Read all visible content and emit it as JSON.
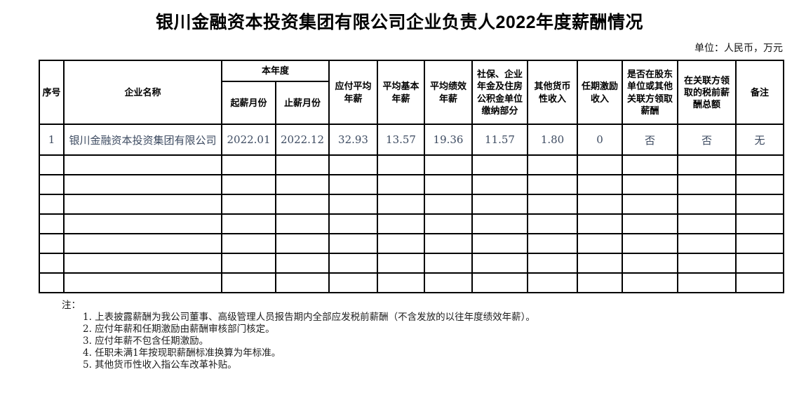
{
  "title": "银川金融资本投资集团有限公司企业负责人2022年度薪酬情况",
  "unit_label": "单位：人民币，万元",
  "table": {
    "headers": {
      "seq_no": "序号",
      "company_name": "企业名称",
      "current_year": "本年度",
      "salary_start_month": "起薪月份",
      "salary_end_month": "止薪月份",
      "payable_avg_annual_salary": "应付平均年薪",
      "avg_basic_annual_salary": "平均基本年薪",
      "avg_performance_annual_salary": "平均绩效年薪",
      "social_insurance_contribution": "社保、企业年金及住房公积金单位缴纳部分",
      "other_monetary_income": "其他货币性收入",
      "tenure_incentive_income": "任期激励收入",
      "pay_from_shareholder": "是否在股东单位或其他关联方领取薪酬",
      "pretax_pay_from_related_party": "在关联方领取的税前薪酬总额",
      "remarks": "备注"
    },
    "rows": [
      {
        "seq": "1",
        "company": "银川金融资本投资集团有限公司",
        "start_month": "2022.01",
        "end_month": "2022.12",
        "payable_avg": "32.93",
        "avg_basic": "13.57",
        "avg_performance": "19.36",
        "social_insurance": "11.57",
        "other_monetary": "1.80",
        "tenure_incentive": "0",
        "shareholder_pay": "否",
        "related_pretax": "否",
        "remarks": "无"
      }
    ],
    "empty_row_count": 7,
    "columns_count": 13
  },
  "notes": {
    "label": "注：",
    "items": [
      "1. 上表披露薪酬为我公司董事、高级管理人员报告期内全部应发税前薪酬（不含发放的以往年度绩效年薪）。",
      "2. 应付年薪和任期激励由薪酬审核部门核定。",
      "3. 应付年薪不包含任期激励。",
      "4. 任职未满1年按现职薪酬标准换算为年标准。",
      "5. 其他货币性收入指公车改革补贴。"
    ]
  },
  "colors": {
    "text_primary": "#000000",
    "data_text": "#3d4b61",
    "border": "#000000",
    "background": "#ffffff"
  }
}
